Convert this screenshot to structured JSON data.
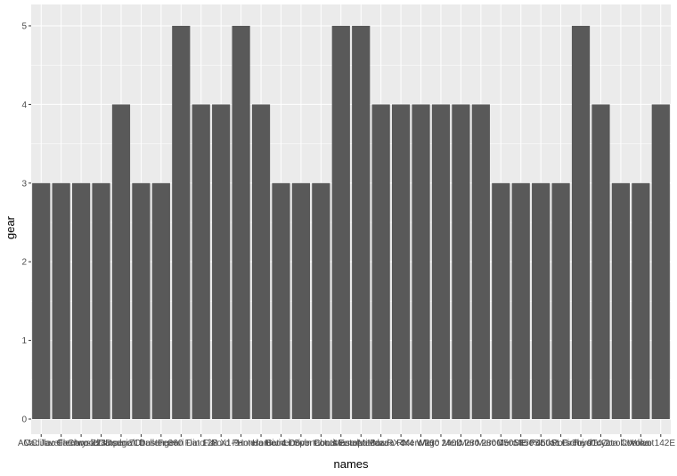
{
  "chart_data": {
    "type": "bar",
    "xlabel": "names",
    "ylabel": "gear",
    "ylim": [
      0,
      5
    ],
    "y_ticks": [
      0,
      1,
      2,
      3,
      4,
      5
    ],
    "grid": true,
    "colors": {
      "panel": "#ebebeb",
      "grid": "#ffffff",
      "bar": "#595959",
      "tick_text": "#4d4d4d"
    },
    "categories": [
      "AMC Javelin",
      "Cadillac Fleetwood",
      "Camaro Z28",
      "Chrysler Imperial",
      "Datsun 710",
      "Dodge Challenger",
      "Duster 360",
      "Ferrari Dino",
      "Fiat 128",
      "Fiat X1-9",
      "Ford Pantera L",
      "Honda Civic",
      "Hornet 4 Drive",
      "Hornet Sportabout",
      "Lincoln Continental",
      "Lotus Europa",
      "Maserati Bora",
      "Mazda RX4",
      "Mazda RX4 Wag",
      "Merc 230",
      "Merc 240D",
      "Merc 280",
      "Merc 280C",
      "Merc 450SE",
      "Merc 450SL",
      "Merc 450SLC",
      "Pontiac Firebird",
      "Porsche 914-2",
      "Toyota Corolla",
      "Toyota Corona",
      "Valiant",
      "Volvo 142E"
    ],
    "values": [
      3,
      3,
      3,
      3,
      4,
      3,
      3,
      5,
      4,
      4,
      5,
      4,
      3,
      3,
      3,
      5,
      5,
      4,
      4,
      4,
      4,
      4,
      4,
      3,
      3,
      3,
      3,
      5,
      4,
      3,
      3,
      4
    ]
  }
}
